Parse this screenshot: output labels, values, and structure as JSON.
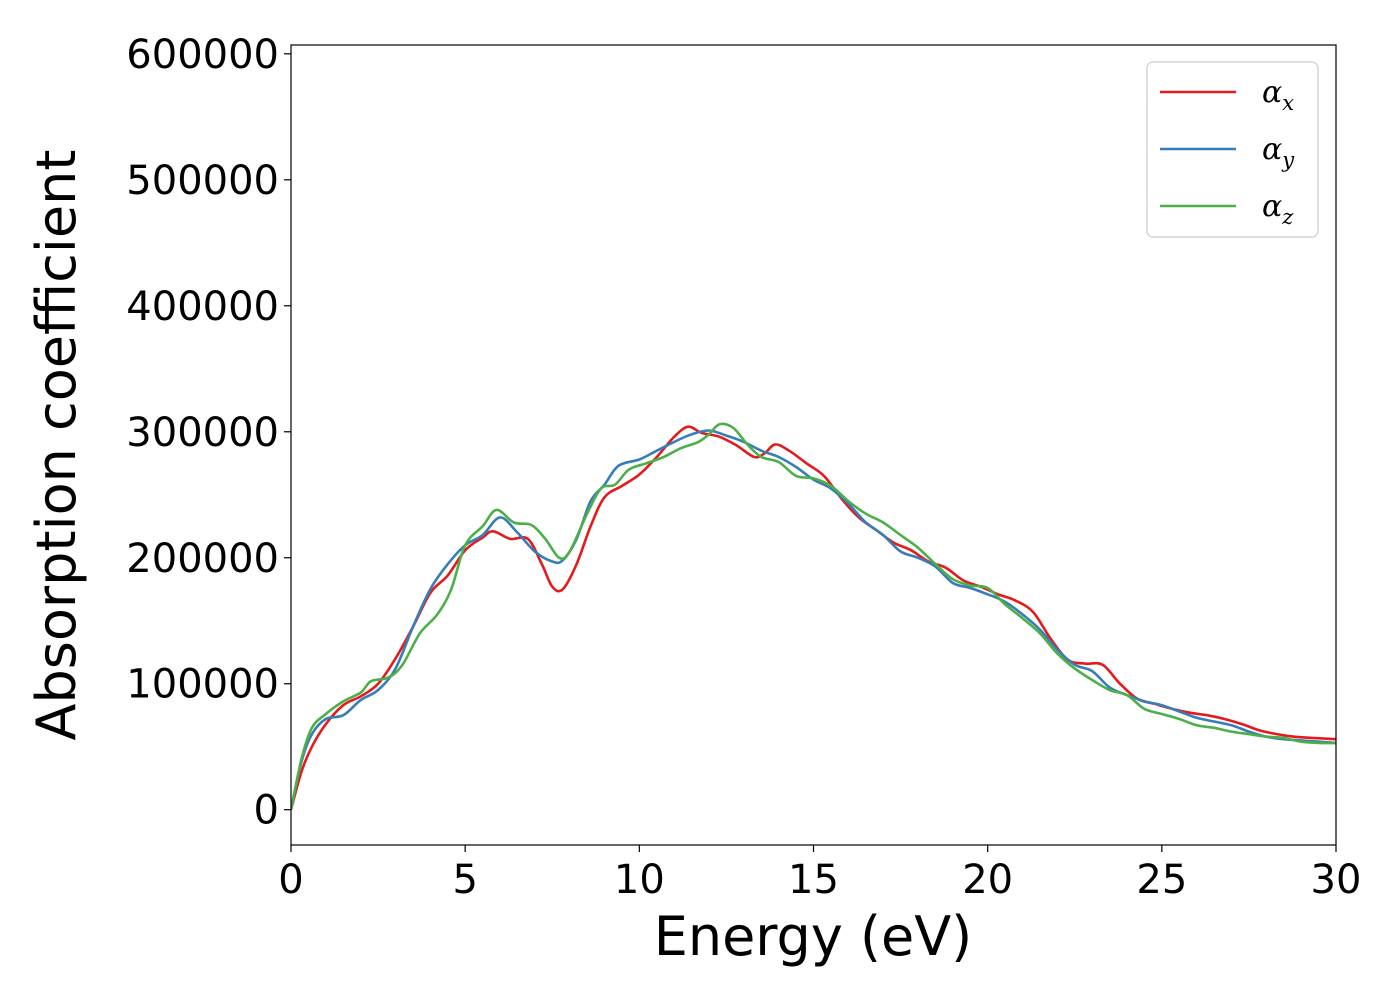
{
  "chart_data": {
    "type": "line",
    "title": "",
    "xlabel": "Energy (eV)",
    "ylabel": "Absorption coefficient",
    "xlim": [
      0,
      30
    ],
    "ylim": [
      -28000,
      607000
    ],
    "x_ticks": [
      0,
      5,
      10,
      15,
      20,
      25,
      30
    ],
    "y_ticks": [
      0,
      100000,
      200000,
      300000,
      400000,
      500000,
      600000
    ],
    "grid": false,
    "legend_position": "top-right",
    "series": [
      {
        "name": "α",
        "subscript": "x",
        "color": "#e41a1c",
        "points": [
          [
            0,
            0
          ],
          [
            0.3,
            30000
          ],
          [
            0.6,
            50000
          ],
          [
            1,
            68000
          ],
          [
            1.5,
            83000
          ],
          [
            2,
            90000
          ],
          [
            2.5,
            100000
          ],
          [
            3,
            120000
          ],
          [
            3.5,
            145000
          ],
          [
            4,
            172000
          ],
          [
            4.5,
            186000
          ],
          [
            5,
            206000
          ],
          [
            5.5,
            216000
          ],
          [
            5.8,
            221000
          ],
          [
            6.3,
            215000
          ],
          [
            6.8,
            215000
          ],
          [
            7.2,
            195000
          ],
          [
            7.5,
            177000
          ],
          [
            7.8,
            175000
          ],
          [
            8.2,
            195000
          ],
          [
            8.6,
            225000
          ],
          [
            9,
            248000
          ],
          [
            9.5,
            257000
          ],
          [
            10,
            266000
          ],
          [
            10.5,
            280000
          ],
          [
            11,
            296000
          ],
          [
            11.4,
            304000
          ],
          [
            11.8,
            299000
          ],
          [
            12.3,
            296000
          ],
          [
            12.8,
            289000
          ],
          [
            13.3,
            280000
          ],
          [
            13.6,
            283000
          ],
          [
            13.9,
            290000
          ],
          [
            14.3,
            285000
          ],
          [
            14.8,
            275000
          ],
          [
            15.3,
            265000
          ],
          [
            15.8,
            247000
          ],
          [
            16.3,
            232000
          ],
          [
            16.8,
            222000
          ],
          [
            17.3,
            212000
          ],
          [
            17.8,
            206000
          ],
          [
            18.3,
            197000
          ],
          [
            18.8,
            192000
          ],
          [
            19.3,
            182000
          ],
          [
            19.8,
            177000
          ],
          [
            20.3,
            171000
          ],
          [
            20.8,
            166000
          ],
          [
            21.3,
            157000
          ],
          [
            21.8,
            136000
          ],
          [
            22.3,
            119000
          ],
          [
            22.8,
            116000
          ],
          [
            23.3,
            115000
          ],
          [
            23.8,
            100000
          ],
          [
            24.3,
            88000
          ],
          [
            24.8,
            84000
          ],
          [
            25.3,
            80000
          ],
          [
            25.8,
            77000
          ],
          [
            26.3,
            75000
          ],
          [
            26.8,
            72000
          ],
          [
            27.3,
            68000
          ],
          [
            27.8,
            63000
          ],
          [
            28.3,
            60000
          ],
          [
            28.8,
            58000
          ],
          [
            29.3,
            57000
          ],
          [
            30,
            56000
          ]
        ]
      },
      {
        "name": "α",
        "subscript": "y",
        "color": "#377eb8",
        "points": [
          [
            0,
            0
          ],
          [
            0.3,
            38000
          ],
          [
            0.6,
            60000
          ],
          [
            1,
            72000
          ],
          [
            1.5,
            75000
          ],
          [
            2,
            87000
          ],
          [
            2.5,
            95000
          ],
          [
            3,
            112000
          ],
          [
            3.5,
            145000
          ],
          [
            4,
            175000
          ],
          [
            4.5,
            195000
          ],
          [
            5,
            210000
          ],
          [
            5.5,
            218000
          ],
          [
            6,
            232000
          ],
          [
            6.5,
            220000
          ],
          [
            7,
            205000
          ],
          [
            7.5,
            197000
          ],
          [
            7.8,
            198000
          ],
          [
            8.2,
            215000
          ],
          [
            8.6,
            245000
          ],
          [
            9,
            258000
          ],
          [
            9.4,
            273000
          ],
          [
            10,
            278000
          ],
          [
            10.5,
            285000
          ],
          [
            11,
            292000
          ],
          [
            11.5,
            298000
          ],
          [
            12,
            301000
          ],
          [
            12.5,
            297000
          ],
          [
            13,
            292000
          ],
          [
            13.5,
            285000
          ],
          [
            14,
            280000
          ],
          [
            14.5,
            272000
          ],
          [
            15,
            262000
          ],
          [
            15.5,
            255000
          ],
          [
            16,
            243000
          ],
          [
            16.5,
            228000
          ],
          [
            17,
            218000
          ],
          [
            17.5,
            205000
          ],
          [
            18,
            200000
          ],
          [
            18.5,
            193000
          ],
          [
            19,
            180000
          ],
          [
            19.5,
            176000
          ],
          [
            20,
            171000
          ],
          [
            20.5,
            165000
          ],
          [
            21,
            155000
          ],
          [
            21.5,
            143000
          ],
          [
            22,
            127000
          ],
          [
            22.5,
            115000
          ],
          [
            23,
            110000
          ],
          [
            23.5,
            97000
          ],
          [
            24,
            91000
          ],
          [
            24.5,
            86000
          ],
          [
            25,
            83000
          ],
          [
            25.5,
            78000
          ],
          [
            26,
            73000
          ],
          [
            26.5,
            70000
          ],
          [
            27,
            67000
          ],
          [
            27.5,
            62000
          ],
          [
            28,
            58000
          ],
          [
            28.5,
            56000
          ],
          [
            29,
            55000
          ],
          [
            29.5,
            54000
          ],
          [
            30,
            53000
          ]
        ]
      },
      {
        "name": "α",
        "subscript": "z",
        "color": "#4daf4a",
        "points": [
          [
            0,
            0
          ],
          [
            0.3,
            40000
          ],
          [
            0.6,
            65000
          ],
          [
            1,
            76000
          ],
          [
            1.5,
            86000
          ],
          [
            2,
            93000
          ],
          [
            2.3,
            102000
          ],
          [
            2.8,
            105000
          ],
          [
            3.2,
            115000
          ],
          [
            3.7,
            140000
          ],
          [
            4.2,
            155000
          ],
          [
            4.6,
            175000
          ],
          [
            5,
            210000
          ],
          [
            5.5,
            225000
          ],
          [
            5.9,
            238000
          ],
          [
            6.4,
            228000
          ],
          [
            6.9,
            226000
          ],
          [
            7.3,
            215000
          ],
          [
            7.7,
            200000
          ],
          [
            8,
            205000
          ],
          [
            8.5,
            235000
          ],
          [
            8.9,
            255000
          ],
          [
            9.3,
            258000
          ],
          [
            9.7,
            270000
          ],
          [
            10.2,
            275000
          ],
          [
            10.7,
            280000
          ],
          [
            11.2,
            287000
          ],
          [
            11.7,
            292000
          ],
          [
            12,
            298000
          ],
          [
            12.3,
            306000
          ],
          [
            12.7,
            303000
          ],
          [
            13.1,
            290000
          ],
          [
            13.5,
            280000
          ],
          [
            14,
            276000
          ],
          [
            14.5,
            265000
          ],
          [
            15,
            263000
          ],
          [
            15.5,
            257000
          ],
          [
            16,
            245000
          ],
          [
            16.5,
            235000
          ],
          [
            17,
            228000
          ],
          [
            17.5,
            218000
          ],
          [
            18,
            208000
          ],
          [
            18.5,
            195000
          ],
          [
            19,
            183000
          ],
          [
            19.5,
            178000
          ],
          [
            20,
            176000
          ],
          [
            20.5,
            163000
          ],
          [
            21,
            152000
          ],
          [
            21.5,
            140000
          ],
          [
            22,
            124000
          ],
          [
            22.5,
            112000
          ],
          [
            23,
            103000
          ],
          [
            23.5,
            95000
          ],
          [
            24,
            91000
          ],
          [
            24.5,
            80000
          ],
          [
            25,
            76000
          ],
          [
            25.5,
            72000
          ],
          [
            26,
            67000
          ],
          [
            26.5,
            65000
          ],
          [
            27,
            62000
          ],
          [
            27.5,
            60000
          ],
          [
            28,
            58000
          ],
          [
            28.5,
            57000
          ],
          [
            29,
            54000
          ],
          [
            29.5,
            53000
          ],
          [
            30,
            53000
          ]
        ]
      }
    ]
  }
}
